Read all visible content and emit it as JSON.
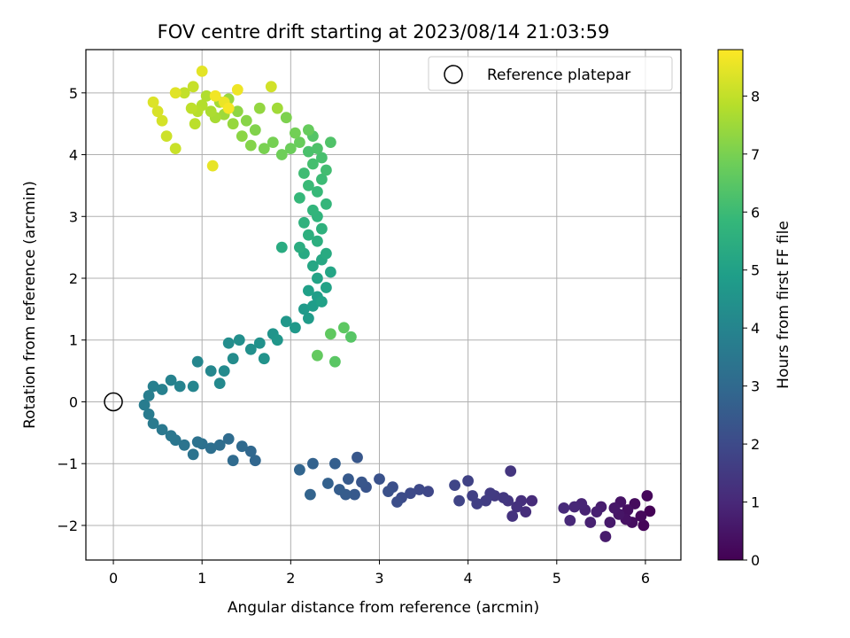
{
  "chart_data": {
    "type": "scatter",
    "title": "FOV centre drift starting at 2023/08/14 21:03:59",
    "xlabel": "Angular distance from reference (arcmin)",
    "ylabel": "Rotation from reference (arcmin)",
    "xlim": [
      -0.31,
      6.4
    ],
    "ylim": [
      -2.56,
      5.7
    ],
    "xticks": [
      0,
      1,
      2,
      3,
      4,
      5,
      6
    ],
    "yticks": [
      -2,
      -1,
      0,
      1,
      2,
      3,
      4,
      5
    ],
    "grid": true,
    "legend": {
      "position": "top-right",
      "entries": [
        "Reference platepar"
      ]
    },
    "reference_point": {
      "x": 0,
      "y": 0,
      "label": "Reference platepar"
    },
    "colorbar": {
      "label": "Hours from first FF file",
      "range": [
        0,
        8.8
      ],
      "ticks": [
        0,
        1,
        2,
        3,
        4,
        5,
        6,
        7,
        8
      ],
      "colormap": "viridis"
    },
    "colors": {
      "viridis": [
        "#440154",
        "#482878",
        "#3e4989",
        "#31688e",
        "#26828e",
        "#1f9e89",
        "#35b779",
        "#6ece58",
        "#b5de2b",
        "#fde725"
      ]
    },
    "series": [
      {
        "points": [
          [
            6.05,
            -1.77,
            0.05
          ],
          [
            5.98,
            -2.0,
            0.1
          ],
          [
            6.02,
            -1.52,
            0.15
          ],
          [
            5.95,
            -1.85,
            0.2
          ],
          [
            5.88,
            -1.65,
            0.25
          ],
          [
            5.85,
            -1.95,
            0.3
          ],
          [
            5.8,
            -1.75,
            0.35
          ],
          [
            5.78,
            -1.9,
            0.4
          ],
          [
            5.72,
            -1.62,
            0.45
          ],
          [
            5.7,
            -1.82,
            0.5
          ],
          [
            5.65,
            -1.72,
            0.55
          ],
          [
            5.6,
            -1.95,
            0.6
          ],
          [
            5.55,
            -2.18,
            0.65
          ],
          [
            5.5,
            -1.7,
            0.7
          ],
          [
            5.45,
            -1.78,
            0.75
          ],
          [
            5.38,
            -1.95,
            0.8
          ],
          [
            5.32,
            -1.75,
            0.85
          ],
          [
            5.28,
            -1.65,
            0.9
          ],
          [
            5.2,
            -1.7,
            0.95
          ],
          [
            5.15,
            -1.92,
            1.0
          ],
          [
            5.08,
            -1.72,
            1.05
          ],
          [
            4.72,
            -1.6,
            1.1
          ],
          [
            4.65,
            -1.78,
            1.15
          ],
          [
            4.6,
            -1.6,
            1.2
          ],
          [
            4.55,
            -1.7,
            1.25
          ],
          [
            4.5,
            -1.85,
            1.3
          ],
          [
            4.45,
            -1.6,
            1.35
          ],
          [
            4.48,
            -1.12,
            1.4
          ],
          [
            4.4,
            -1.55,
            1.45
          ],
          [
            4.3,
            -1.52,
            1.5
          ],
          [
            4.25,
            -1.48,
            1.55
          ],
          [
            4.2,
            -1.6,
            1.6
          ],
          [
            4.1,
            -1.65,
            1.65
          ],
          [
            4.05,
            -1.52,
            1.7
          ],
          [
            4.0,
            -1.28,
            1.75
          ],
          [
            3.9,
            -1.6,
            1.8
          ],
          [
            3.85,
            -1.35,
            1.85
          ],
          [
            3.55,
            -1.45,
            1.9
          ],
          [
            3.45,
            -1.42,
            1.95
          ],
          [
            3.35,
            -1.48,
            2.0
          ],
          [
            3.25,
            -1.55,
            2.05
          ],
          [
            3.2,
            -1.62,
            2.1
          ],
          [
            3.15,
            -1.38,
            2.15
          ],
          [
            3.1,
            -1.45,
            2.2
          ],
          [
            3.0,
            -1.25,
            2.25
          ],
          [
            2.85,
            -1.38,
            2.3
          ],
          [
            2.8,
            -1.3,
            2.35
          ],
          [
            2.75,
            -0.9,
            2.4
          ],
          [
            2.72,
            -1.5,
            2.45
          ],
          [
            2.65,
            -1.25,
            2.5
          ],
          [
            2.62,
            -1.5,
            2.55
          ],
          [
            2.55,
            -1.42,
            2.6
          ],
          [
            2.5,
            -1.0,
            2.65
          ],
          [
            2.42,
            -1.32,
            2.7
          ],
          [
            2.25,
            -1.0,
            2.75
          ],
          [
            2.22,
            -1.5,
            2.8
          ],
          [
            2.1,
            -1.1,
            2.85
          ],
          [
            1.6,
            -0.95,
            2.9
          ],
          [
            1.55,
            -0.8,
            2.95
          ],
          [
            1.45,
            -0.72,
            3.0
          ],
          [
            1.35,
            -0.95,
            3.05
          ],
          [
            1.3,
            -0.6,
            3.1
          ],
          [
            1.2,
            -0.7,
            3.15
          ],
          [
            1.1,
            -0.75,
            3.2
          ],
          [
            1.0,
            -0.68,
            3.25
          ],
          [
            0.95,
            -0.65,
            3.3
          ],
          [
            0.9,
            -0.85,
            3.35
          ],
          [
            0.8,
            -0.7,
            3.4
          ],
          [
            0.7,
            -0.62,
            3.45
          ],
          [
            0.65,
            -0.55,
            3.5
          ],
          [
            0.55,
            -0.45,
            3.55
          ],
          [
            0.45,
            -0.35,
            3.6
          ],
          [
            0.4,
            -0.2,
            3.65
          ],
          [
            0.35,
            -0.05,
            3.7
          ],
          [
            0.4,
            0.1,
            3.75
          ],
          [
            0.45,
            0.25,
            3.8
          ],
          [
            0.55,
            0.2,
            3.85
          ],
          [
            0.65,
            0.35,
            3.9
          ],
          [
            0.75,
            0.25,
            3.95
          ],
          [
            0.9,
            0.25,
            4.0
          ],
          [
            0.95,
            0.65,
            4.05
          ],
          [
            1.1,
            0.5,
            4.1
          ],
          [
            1.2,
            0.3,
            4.15
          ],
          [
            1.25,
            0.5,
            4.2
          ],
          [
            1.35,
            0.7,
            4.25
          ],
          [
            1.3,
            0.95,
            4.3
          ],
          [
            1.42,
            1.0,
            4.35
          ],
          [
            1.55,
            0.85,
            4.4
          ],
          [
            1.65,
            0.95,
            4.45
          ],
          [
            1.7,
            0.7,
            4.5
          ],
          [
            1.8,
            1.1,
            4.55
          ],
          [
            1.85,
            1.0,
            4.6
          ],
          [
            1.95,
            1.3,
            4.65
          ],
          [
            2.05,
            1.2,
            4.7
          ],
          [
            2.15,
            1.5,
            4.75
          ],
          [
            2.2,
            1.35,
            4.8
          ],
          [
            2.25,
            1.55,
            4.85
          ],
          [
            2.3,
            1.7,
            4.9
          ],
          [
            2.2,
            1.8,
            4.95
          ],
          [
            2.35,
            1.62,
            5.0
          ],
          [
            2.4,
            1.85,
            5.05
          ],
          [
            2.3,
            2.0,
            5.1
          ],
          [
            2.45,
            2.1,
            5.15
          ],
          [
            2.25,
            2.2,
            5.2
          ],
          [
            2.35,
            2.3,
            5.25
          ],
          [
            2.15,
            2.4,
            5.3
          ],
          [
            2.4,
            2.4,
            5.35
          ],
          [
            1.9,
            2.5,
            5.4
          ],
          [
            2.1,
            2.5,
            5.45
          ],
          [
            2.3,
            2.6,
            5.5
          ],
          [
            2.2,
            2.7,
            5.55
          ],
          [
            2.35,
            2.8,
            5.6
          ],
          [
            2.15,
            2.9,
            5.65
          ],
          [
            2.3,
            3.0,
            5.7
          ],
          [
            2.25,
            3.1,
            5.75
          ],
          [
            2.4,
            3.2,
            5.8
          ],
          [
            2.1,
            3.3,
            5.85
          ],
          [
            2.3,
            3.4,
            5.9
          ],
          [
            2.2,
            3.5,
            5.95
          ],
          [
            2.35,
            3.6,
            6.0
          ],
          [
            2.15,
            3.7,
            6.05
          ],
          [
            2.4,
            3.75,
            6.1
          ],
          [
            2.25,
            3.85,
            6.15
          ],
          [
            2.35,
            3.95,
            6.2
          ],
          [
            2.2,
            4.05,
            6.25
          ],
          [
            2.3,
            4.1,
            6.3
          ],
          [
            2.45,
            4.2,
            6.35
          ],
          [
            2.25,
            4.3,
            6.4
          ],
          [
            2.68,
            1.05,
            6.45
          ],
          [
            2.5,
            0.65,
            6.5
          ],
          [
            2.6,
            1.2,
            6.55
          ],
          [
            2.45,
            1.1,
            6.6
          ],
          [
            2.3,
            0.75,
            6.65
          ],
          [
            2.2,
            4.4,
            6.7
          ],
          [
            2.1,
            4.2,
            6.75
          ],
          [
            2.0,
            4.1,
            6.8
          ],
          [
            1.9,
            4.0,
            6.85
          ],
          [
            2.05,
            4.35,
            6.9
          ],
          [
            1.8,
            4.2,
            6.95
          ],
          [
            1.7,
            4.1,
            7.0
          ],
          [
            1.95,
            4.6,
            7.05
          ],
          [
            1.6,
            4.4,
            7.1
          ],
          [
            1.55,
            4.15,
            7.15
          ],
          [
            1.5,
            4.55,
            7.2
          ],
          [
            1.45,
            4.3,
            7.25
          ],
          [
            1.4,
            4.7,
            7.3
          ],
          [
            1.65,
            4.75,
            7.35
          ],
          [
            1.35,
            4.5,
            7.4
          ],
          [
            1.3,
            4.9,
            7.45
          ],
          [
            1.25,
            4.65,
            7.5
          ],
          [
            1.85,
            4.75,
            7.55
          ],
          [
            1.2,
            4.85,
            7.6
          ],
          [
            1.15,
            4.6,
            7.65
          ],
          [
            1.1,
            4.7,
            7.7
          ],
          [
            1.05,
            4.95,
            7.75
          ],
          [
            1.0,
            4.8,
            7.8
          ],
          [
            0.95,
            4.7,
            7.85
          ],
          [
            0.92,
            4.5,
            7.9
          ],
          [
            0.88,
            4.75,
            7.95
          ],
          [
            0.8,
            5.0,
            8.0
          ],
          [
            0.9,
            5.1,
            8.05
          ],
          [
            0.7,
            4.1,
            8.1
          ],
          [
            0.6,
            4.3,
            8.15
          ],
          [
            1.78,
            5.1,
            8.2
          ],
          [
            0.55,
            4.55,
            8.25
          ],
          [
            0.5,
            4.7,
            8.3
          ],
          [
            0.45,
            4.85,
            8.35
          ],
          [
            0.7,
            5.0,
            8.4
          ],
          [
            1.0,
            5.35,
            8.45
          ],
          [
            1.12,
            3.82,
            8.5
          ],
          [
            1.25,
            4.85,
            8.55
          ],
          [
            1.4,
            5.05,
            8.6
          ],
          [
            1.15,
            4.95,
            8.65
          ],
          [
            1.3,
            4.75,
            8.7
          ]
        ]
      }
    ]
  }
}
